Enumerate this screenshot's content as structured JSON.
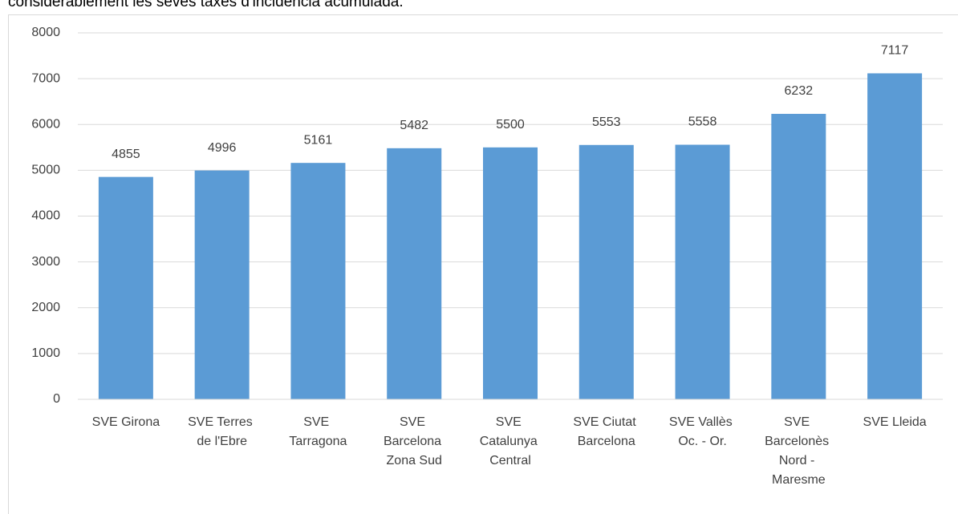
{
  "header_text": "considerablement les seves taxes d'incidència acumulada.",
  "chart_data": {
    "type": "bar",
    "categories": [
      "SVE Girona",
      "SVE Terres de l'Ebre",
      "SVE Tarragona",
      "SVE Barcelona Zona Sud",
      "SVE Catalunya Central",
      "SVE Ciutat Barcelona",
      "SVE Vallès Oc. - Or.",
      "SVE Barcelonès Nord - Maresme",
      "SVE Lleida"
    ],
    "values": [
      4855,
      4996,
      5161,
      5482,
      5500,
      5553,
      5558,
      6232,
      7117
    ],
    "color": "#5b9bd5",
    "ylim": [
      0,
      8000
    ],
    "yticks": [
      0,
      1000,
      2000,
      3000,
      4000,
      5000,
      6000,
      7000,
      8000
    ],
    "grid": true
  }
}
